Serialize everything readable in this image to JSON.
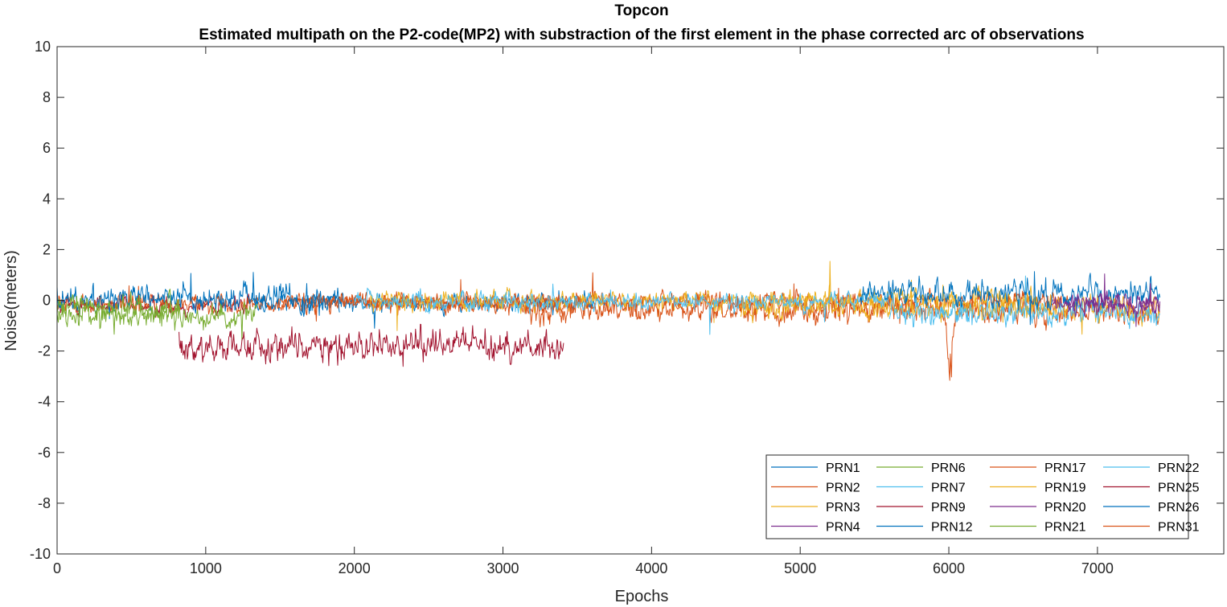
{
  "chart_data": {
    "type": "line",
    "title": "Topcon",
    "subtitle": "Estimated multipath on the P2-code(MP2) with substraction of the first element in the phase corrected arc of observations",
    "xlabel": "Epochs",
    "ylabel": "Noise(meters)",
    "xlim": [
      0,
      7850
    ],
    "ylim": [
      -10,
      10
    ],
    "xticks": [
      0,
      1000,
      2000,
      3000,
      4000,
      5000,
      6000,
      7000
    ],
    "yticks": [
      -10,
      -8,
      -6,
      -4,
      -2,
      0,
      2,
      4,
      6,
      8,
      10
    ],
    "grid": false,
    "legend_position": "bottom-right",
    "legend_columns": 4,
    "series": [
      {
        "name": "PRN1",
        "color": "#0072BD",
        "x_range": [
          0,
          1900
        ],
        "mean": 0.1,
        "noise": 0.45
      },
      {
        "name": "PRN2",
        "color": "#D95319",
        "x_range": [
          3150,
          7420
        ],
        "mean": -0.4,
        "noise": 0.45
      },
      {
        "name": "PRN3",
        "color": "#EDB120",
        "x_range": [
          4600,
          7420
        ],
        "mean": -0.3,
        "noise": 0.4
      },
      {
        "name": "PRN4",
        "color": "#7E2F8E",
        "x_range": [
          6700,
          7420
        ],
        "mean": -0.2,
        "noise": 0.35
      },
      {
        "name": "PRN6",
        "color": "#77AC30",
        "x_range": [
          0,
          1350
        ],
        "mean": -0.6,
        "noise": 0.4
      },
      {
        "name": "PRN7",
        "color": "#4DBEEE",
        "x_range": [
          2000,
          5600
        ],
        "mean": -0.05,
        "noise": 0.3
      },
      {
        "name": "PRN9",
        "color": "#A2142F",
        "x_range": [
          820,
          3410
        ],
        "mean": -1.8,
        "noise": 0.5
      },
      {
        "name": "PRN12",
        "color": "#0072BD",
        "x_range": [
          5400,
          7420
        ],
        "mean": 0.25,
        "noise": 0.45
      },
      {
        "name": "PRN17",
        "color": "#D95319",
        "x_range": [
          0,
          3400
        ],
        "mean": -0.1,
        "noise": 0.3
      },
      {
        "name": "PRN19",
        "color": "#EDB120",
        "x_range": [
          2100,
          6600
        ],
        "mean": 0.0,
        "noise": 0.35
      },
      {
        "name": "PRN20",
        "color": "#7E2F8E",
        "x_range": [
          6800,
          7420
        ],
        "mean": -0.1,
        "noise": 0.3
      },
      {
        "name": "PRN21",
        "color": "#77AC30",
        "x_range": [
          0,
          820
        ],
        "mean": -0.3,
        "noise": 0.4
      },
      {
        "name": "PRN22",
        "color": "#4DBEEE",
        "x_range": [
          5600,
          7420
        ],
        "mean": -0.5,
        "noise": 0.4
      },
      {
        "name": "PRN25",
        "color": "#A2142F",
        "x_range": [
          0,
          1300
        ],
        "mean": -0.2,
        "noise": 0.3
      },
      {
        "name": "PRN26",
        "color": "#0072BD",
        "x_range": [
          1300,
          3700
        ],
        "mean": -0.1,
        "noise": 0.3
      },
      {
        "name": "PRN31",
        "color": "#D95319",
        "x_range": [
          1500,
          6800
        ],
        "mean": -0.05,
        "noise": 0.3
      }
    ]
  }
}
